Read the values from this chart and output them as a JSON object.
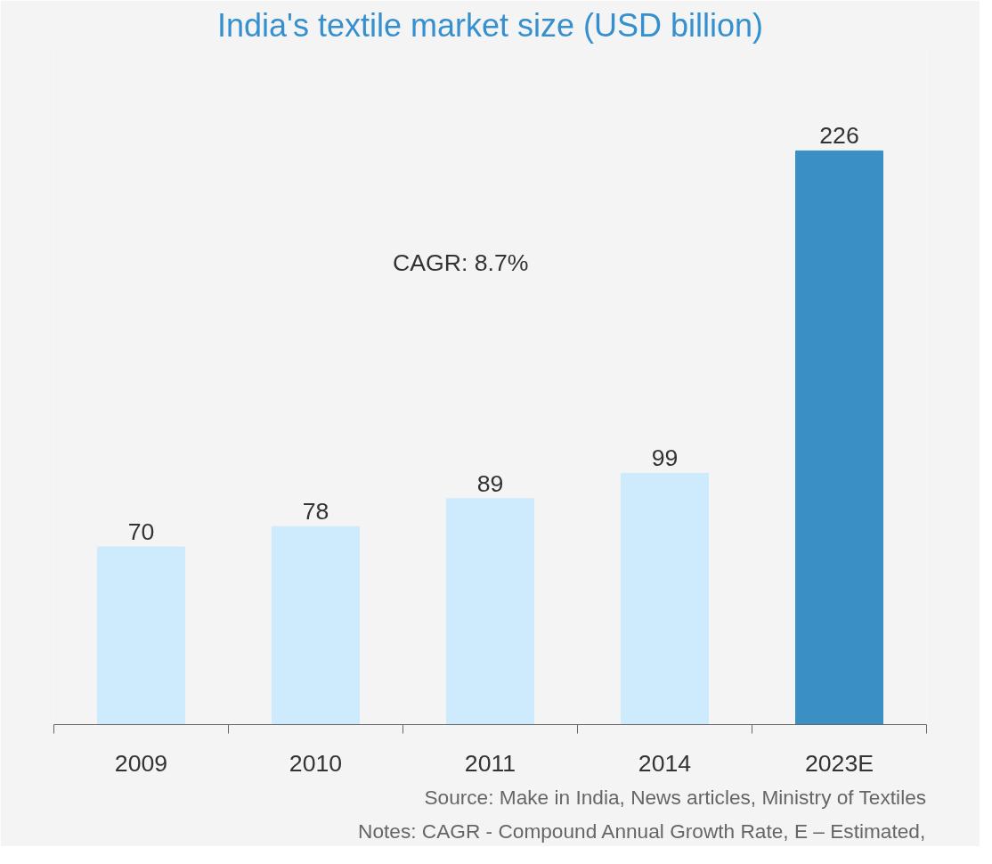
{
  "chart_data": {
    "type": "bar",
    "title": "India's textile market size (USD billion)",
    "categories": [
      "2009",
      "2010",
      "2011",
      "2014",
      "2023E"
    ],
    "values": [
      70,
      78,
      89,
      99,
      226
    ],
    "colors": [
      "#cdebfc",
      "#cdebfc",
      "#cdebfc",
      "#cdebfc",
      "#3a90c5"
    ],
    "data_labels": true,
    "grid": false,
    "annotations": [
      "CAGR: 8.7%",
      "Source: Make in India, News articles, Ministry of Textiles",
      "Notes: CAGR - Compound Annual Growth Rate, E – Estimated,"
    ]
  }
}
